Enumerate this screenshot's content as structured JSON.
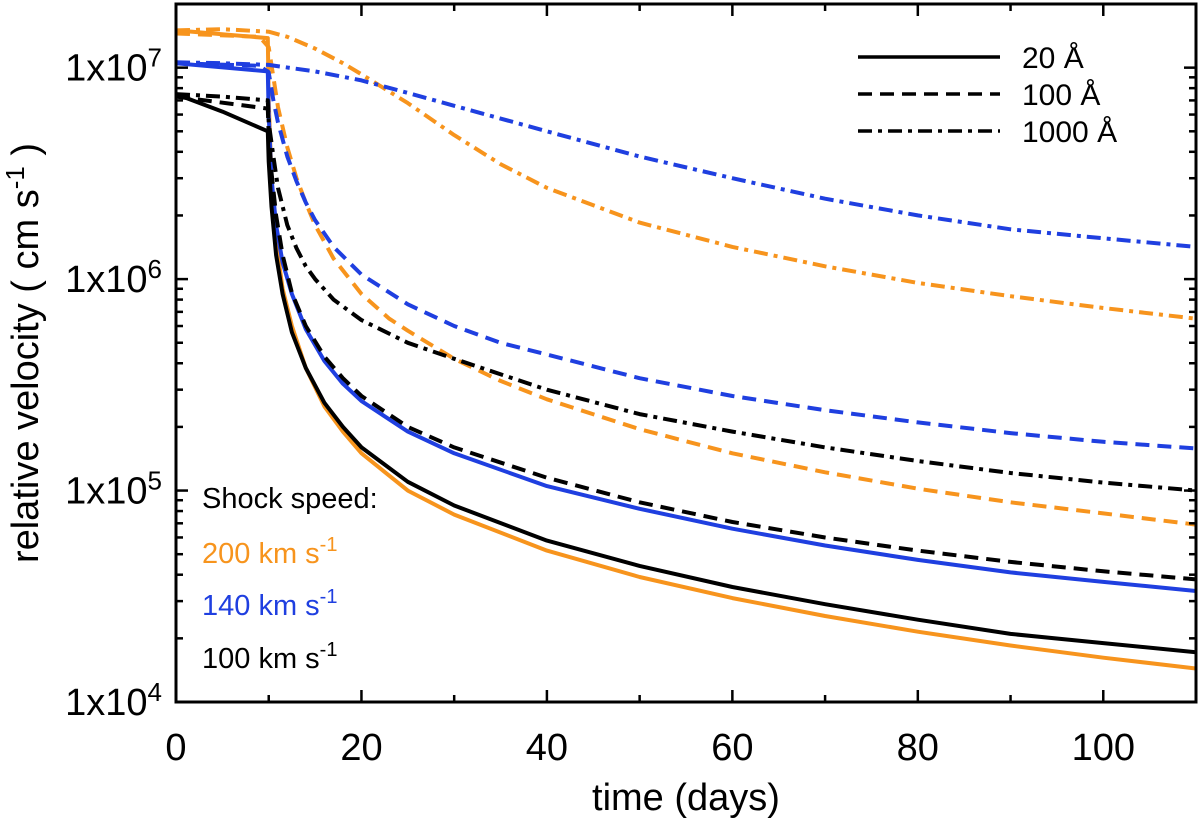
{
  "chart_data": {
    "type": "line",
    "title": "",
    "xlabel": "time (days)",
    "ylabel": "relative velocity ( cm s",
    "ylabel_unit_sup": "-1",
    "ylabel_close": " )",
    "xlim": [
      0,
      110
    ],
    "ylim": [
      10000,
      20000000
    ],
    "yscale": "log",
    "x_ticks": [
      {
        "value": 0,
        "label": "0"
      },
      {
        "value": 20,
        "label": "20"
      },
      {
        "value": 40,
        "label": "40"
      },
      {
        "value": 60,
        "label": "60"
      },
      {
        "value": 80,
        "label": "80"
      },
      {
        "value": 100,
        "label": "100"
      }
    ],
    "y_ticks": [
      {
        "value": 10000,
        "base": "1x10",
        "exp": "4"
      },
      {
        "value": 100000,
        "base": "1x10",
        "exp": "5"
      },
      {
        "value": 1000000,
        "base": "1x10",
        "exp": "6"
      },
      {
        "value": 10000000,
        "base": "1x10",
        "exp": "7"
      }
    ],
    "legend": {
      "placement": "top-right",
      "entries": [
        {
          "label": "20 Å",
          "dash": "solid"
        },
        {
          "label": "100 Å",
          "dash": "dashed"
        },
        {
          "label": "1000 Å",
          "dash": "dashdot"
        }
      ]
    },
    "annotation": {
      "title": "Shock speed:",
      "items": [
        {
          "text": "200 km s",
          "sup": "-1",
          "color": "#f7941d"
        },
        {
          "text": "140 km s",
          "sup": "-1",
          "color": "#1f3fe0"
        },
        {
          "text": "100 km s",
          "sup": "-1",
          "color": "#000000"
        }
      ]
    },
    "series": [
      {
        "name": "200 km/s, 20 Å",
        "color": "#f7941d",
        "dash": "solid",
        "x": [
          0,
          9.9,
          10.0,
          10.3,
          10.8,
          11.5,
          12.5,
          14,
          16,
          18,
          20,
          25,
          30,
          40,
          50,
          60,
          70,
          80,
          90,
          100,
          110
        ],
        "y": [
          15000000,
          13800000,
          7000000,
          3000000,
          1500000,
          900000,
          600000,
          380000,
          250000,
          190000,
          150000,
          100000,
          77000,
          52000,
          39000,
          31000,
          25500,
          21500,
          18500,
          16200,
          14400
        ]
      },
      {
        "name": "140 km/s, 20 Å",
        "color": "#1f3fe0",
        "dash": "solid",
        "x": [
          0,
          9.9,
          10.0,
          10.3,
          10.8,
          11.5,
          12.5,
          14,
          16,
          18,
          20,
          25,
          30,
          40,
          50,
          60,
          70,
          80,
          90,
          100,
          110
        ],
        "y": [
          10500000,
          9600000,
          6000000,
          3000000,
          1800000,
          1200000,
          850000,
          580000,
          410000,
          320000,
          265000,
          190000,
          150000,
          105000,
          82000,
          66000,
          55000,
          47000,
          41000,
          37000,
          33500
        ]
      },
      {
        "name": "100 km/s, 20 Å",
        "color": "#000000",
        "dash": "solid",
        "x": [
          0,
          5,
          9.9,
          10.0,
          10.3,
          10.8,
          11.5,
          12.5,
          14,
          16,
          18,
          20,
          25,
          30,
          40,
          50,
          60,
          70,
          80,
          90,
          100,
          110
        ],
        "y": [
          7500000,
          6200000,
          5000000,
          3600000,
          2200000,
          1300000,
          850000,
          560000,
          380000,
          260000,
          200000,
          160000,
          110000,
          85000,
          58000,
          44000,
          35000,
          29000,
          24500,
          21000,
          19000,
          17200
        ]
      },
      {
        "name": "200 km/s, 100 Å",
        "color": "#f7941d",
        "dash": "dashed",
        "x": [
          0,
          9,
          10,
          10.5,
          11,
          12,
          13,
          14,
          15,
          17,
          20,
          23,
          25,
          30,
          35,
          40,
          50,
          60,
          70,
          80,
          90,
          100,
          110
        ],
        "y": [
          14500000,
          14000000,
          12500000,
          9000000,
          6500000,
          4200000,
          3000000,
          2300000,
          1800000,
          1250000,
          850000,
          650000,
          570000,
          420000,
          330000,
          270000,
          195000,
          150000,
          122000,
          102000,
          88000,
          78000,
          69000
        ]
      },
      {
        "name": "140 km/s, 100 Å",
        "color": "#1f3fe0",
        "dash": "dashed",
        "x": [
          0,
          9,
          10,
          10.5,
          11,
          12,
          13,
          14,
          15,
          17,
          20,
          25,
          30,
          35,
          40,
          50,
          60,
          70,
          80,
          90,
          100,
          110
        ],
        "y": [
          10500000,
          10200000,
          9500000,
          7000000,
          5500000,
          3800000,
          2900000,
          2300000,
          1900000,
          1420000,
          1050000,
          760000,
          600000,
          500000,
          440000,
          340000,
          280000,
          240000,
          210000,
          187000,
          170000,
          158000
        ]
      },
      {
        "name": "100 km/s, 100 Å",
        "color": "#000000",
        "dash": "dashed",
        "x": [
          0,
          9.9,
          10.0,
          10.3,
          10.8,
          11.5,
          12.5,
          14,
          16,
          18,
          20,
          25,
          30,
          40,
          50,
          60,
          70,
          80,
          90,
          100,
          110
        ],
        "y": [
          7300000,
          6400000,
          4800000,
          3200000,
          2000000,
          1300000,
          860000,
          600000,
          430000,
          340000,
          280000,
          200000,
          160000,
          115000,
          88000,
          71000,
          60000,
          52000,
          46000,
          41500,
          38000
        ]
      },
      {
        "name": "200 km/s, 1000 Å",
        "color": "#f7941d",
        "dash": "dashdot",
        "x": [
          0,
          5,
          10,
          12,
          15,
          18,
          20,
          25,
          30,
          35,
          40,
          50,
          60,
          70,
          80,
          90,
          100,
          110
        ],
        "y": [
          15000000,
          15200000,
          14800000,
          14000000,
          12300000,
          10500000,
          9300000,
          6800000,
          4800000,
          3500000,
          2700000,
          1850000,
          1420000,
          1150000,
          960000,
          830000,
          730000,
          650000
        ]
      },
      {
        "name": "140 km/s, 1000 Å",
        "color": "#1f3fe0",
        "dash": "dashdot",
        "x": [
          0,
          5,
          10,
          15,
          20,
          25,
          30,
          40,
          50,
          60,
          70,
          80,
          90,
          100,
          110
        ],
        "y": [
          10600000,
          10500000,
          10300000,
          9600000,
          8700000,
          7600000,
          6600000,
          5000000,
          3800000,
          3000000,
          2400000,
          2000000,
          1720000,
          1560000,
          1420000
        ]
      },
      {
        "name": "100 km/s, 1000 Å",
        "color": "#000000",
        "dash": "dashdot",
        "x": [
          0,
          5,
          9.9,
          10.0,
          10.5,
          11,
          12,
          13,
          14,
          15,
          17,
          20,
          25,
          30,
          40,
          50,
          60,
          70,
          80,
          90,
          100,
          110
        ],
        "y": [
          7500000,
          7300000,
          7000000,
          5500000,
          3800000,
          2700000,
          1800000,
          1400000,
          1150000,
          1000000,
          800000,
          640000,
          500000,
          420000,
          300000,
          230000,
          190000,
          160000,
          138000,
          121000,
          109000,
          100000
        ]
      }
    ]
  }
}
